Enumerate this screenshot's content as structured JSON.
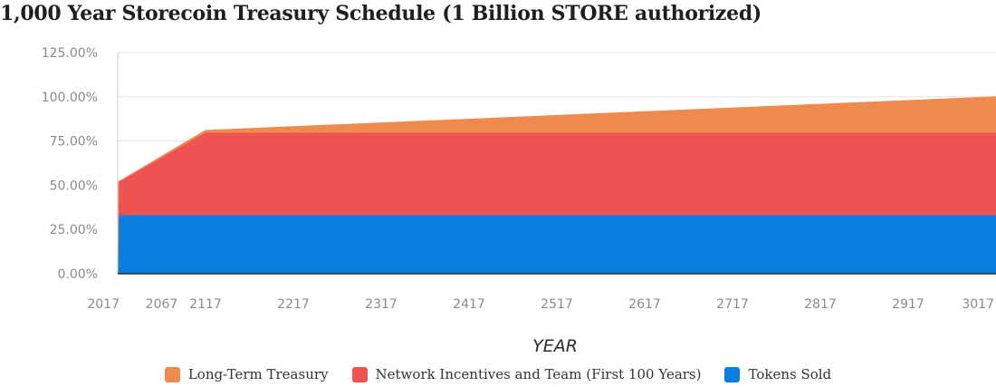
{
  "chart_data": {
    "type": "area",
    "stacked": true,
    "title": "1,000 Year Storecoin Treasury Schedule (1 Billion STORE authorized)",
    "xlabel": "YEAR",
    "ylabel": "",
    "x": [
      2017,
      2018,
      2117,
      3017
    ],
    "x_ticks": [
      "2017",
      "2067",
      "2117",
      "2217",
      "2317",
      "2417",
      "2517",
      "2617",
      "2717",
      "2817",
      "2917",
      "3017"
    ],
    "y_ticks": [
      "0.00%",
      "25.00%",
      "50.00%",
      "75.00%",
      "100.00%",
      "125.00%"
    ],
    "ylim": [
      0,
      125
    ],
    "xlim": [
      2017,
      3017
    ],
    "grid": true,
    "legend_position": "bottom",
    "series": [
      {
        "name": "Tokens Sold",
        "values": [
          0,
          33.3,
          33.3,
          33.3
        ],
        "color": "#0a7fe0"
      },
      {
        "name": "Network Incentives and Team (First 100 Years)",
        "values": [
          0,
          18.7,
          46.7,
          46.7
        ],
        "color": "#ee5252"
      },
      {
        "name": "Long-Term Treasury",
        "values": [
          0,
          0,
          1.0,
          20.0
        ],
        "color": "#ef8a4f"
      }
    ],
    "legend_order": [
      2,
      1,
      0
    ]
  }
}
